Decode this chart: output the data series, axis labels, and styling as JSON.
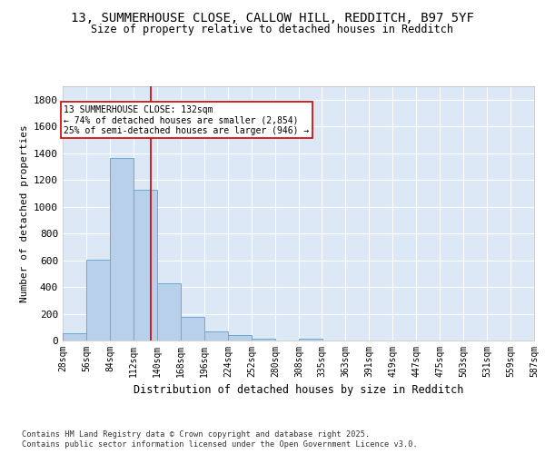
{
  "title_line1": "13, SUMMERHOUSE CLOSE, CALLOW HILL, REDDITCH, B97 5YF",
  "title_line2": "Size of property relative to detached houses in Redditch",
  "xlabel": "Distribution of detached houses by size in Redditch",
  "ylabel": "Number of detached properties",
  "bin_edges": [
    28,
    56,
    84,
    112,
    140,
    168,
    196,
    224,
    252,
    280,
    308,
    335,
    363,
    391,
    419,
    447,
    475,
    503,
    531,
    559,
    587
  ],
  "bin_labels": [
    "28sqm",
    "56sqm",
    "84sqm",
    "112sqm",
    "140sqm",
    "168sqm",
    "196sqm",
    "224sqm",
    "252sqm",
    "280sqm",
    "308sqm",
    "335sqm",
    "363sqm",
    "391sqm",
    "419sqm",
    "447sqm",
    "475sqm",
    "503sqm",
    "531sqm",
    "559sqm",
    "587sqm"
  ],
  "counts": [
    55,
    605,
    1365,
    1125,
    430,
    175,
    65,
    40,
    15,
    0,
    15,
    0,
    0,
    0,
    0,
    0,
    0,
    0,
    0,
    0
  ],
  "bar_color": "#b8d0ea",
  "bar_edge_color": "#6aaad4",
  "property_size": 132,
  "vline_color": "#cc0000",
  "annotation_text": "13 SUMMERHOUSE CLOSE: 132sqm\n← 74% of detached houses are smaller (2,854)\n25% of semi-detached houses are larger (946) →",
  "annotation_box_color": "#ffffff",
  "annotation_box_edge": "#cc0000",
  "ylim": [
    0,
    1900
  ],
  "yticks": [
    0,
    200,
    400,
    600,
    800,
    1000,
    1200,
    1400,
    1600,
    1800
  ],
  "background_color": "#dce8f5",
  "grid_color": "#ffffff",
  "fig_bg_color": "#ffffff",
  "footer_line1": "Contains HM Land Registry data © Crown copyright and database right 2025.",
  "footer_line2": "Contains public sector information licensed under the Open Government Licence v3.0."
}
